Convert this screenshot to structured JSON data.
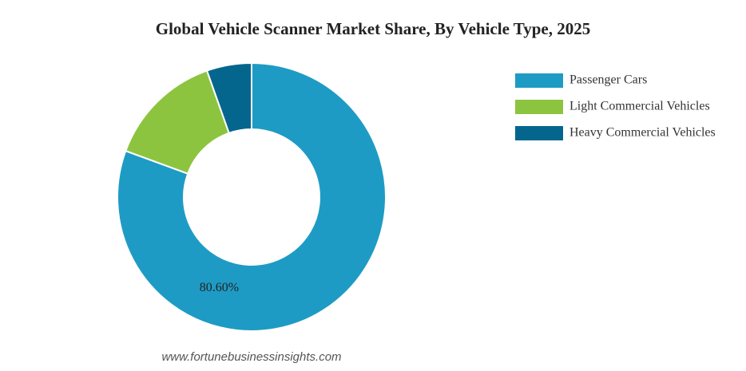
{
  "chart_data": {
    "type": "donut",
    "title": "Global Vehicle Scanner Market Share, By Vehicle Type, 2025",
    "categories": [
      "Passenger Cars",
      "Light Commercial Vehicles",
      "Heavy Commercial Vehicles"
    ],
    "values": [
      80.6,
      14.0,
      5.4
    ],
    "value_labels": [
      "80.60%",
      null,
      null
    ],
    "colors": [
      "#1e9bc4",
      "#8dc43f",
      "#05668d"
    ],
    "legend": "right",
    "source": "www.fortunebusinessinsights.com"
  }
}
